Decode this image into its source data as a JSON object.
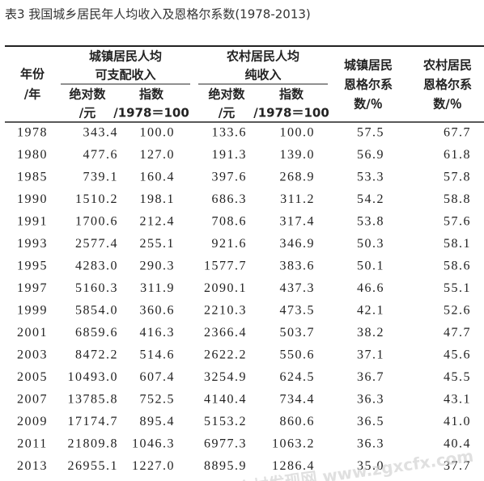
{
  "title": "表3 我国城乡居民年人均收入及恩格尔系数(1978-2013)",
  "table": {
    "header": {
      "year": [
        "年份",
        "/年"
      ],
      "urban_group": [
        "城镇居民人均",
        "可支配收入"
      ],
      "urban_abs": [
        "绝对数",
        "/元"
      ],
      "urban_index": [
        "指数",
        "/1978＝100"
      ],
      "rural_group": [
        "农村居民人均",
        "纯收入"
      ],
      "rural_abs": [
        "绝对数",
        "/元"
      ],
      "rural_index": [
        "指数",
        "/1978＝100"
      ],
      "urban_engel": [
        "城镇居民",
        "恩格尔系",
        "数/％"
      ],
      "rural_engel": [
        "农村居民",
        "恩格尔系",
        "数/％"
      ]
    },
    "rows": [
      [
        "1978",
        "343.4",
        "100.0",
        "133.6",
        "100.0",
        "57.5",
        "67.7"
      ],
      [
        "1980",
        "477.6",
        "127.0",
        "191.3",
        "139.0",
        "56.9",
        "61.8"
      ],
      [
        "1985",
        "739.1",
        "160.4",
        "397.6",
        "268.9",
        "53.3",
        "57.8"
      ],
      [
        "1990",
        "1510.2",
        "198.1",
        "686.3",
        "311.2",
        "54.2",
        "58.8"
      ],
      [
        "1991",
        "1700.6",
        "212.4",
        "708.6",
        "317.4",
        "53.8",
        "57.6"
      ],
      [
        "1993",
        "2577.4",
        "255.1",
        "921.6",
        "346.9",
        "50.3",
        "58.1"
      ],
      [
        "1995",
        "4283.0",
        "290.3",
        "1577.7",
        "383.6",
        "50.1",
        "58.6"
      ],
      [
        "1997",
        "5160.3",
        "311.9",
        "2090.1",
        "437.3",
        "46.6",
        "55.1"
      ],
      [
        "1999",
        "5854.0",
        "360.6",
        "2210.3",
        "473.5",
        "42.1",
        "52.6"
      ],
      [
        "2001",
        "6859.6",
        "416.3",
        "2366.4",
        "503.7",
        "38.2",
        "47.7"
      ],
      [
        "2003",
        "8472.2",
        "514.6",
        "2622.2",
        "550.6",
        "37.1",
        "45.6"
      ],
      [
        "2005",
        "10493.0",
        "607.4",
        "3254.9",
        "624.5",
        "36.7",
        "45.5"
      ],
      [
        "2007",
        "13785.8",
        "752.5",
        "4140.4",
        "734.4",
        "36.3",
        "43.1"
      ],
      [
        "2009",
        "17174.7",
        "895.4",
        "5153.2",
        "860.6",
        "36.5",
        "41.0"
      ],
      [
        "2011",
        "21809.8",
        "1046.3",
        "6977.3",
        "1063.2",
        "36.3",
        "40.4"
      ],
      [
        "2013",
        "26955.1",
        "1227.0",
        "8895.9",
        "1286.4",
        "35.0",
        "37.7"
      ]
    ]
  },
  "watermark": "中国乡村发现网 www.zgxcfx.com"
}
